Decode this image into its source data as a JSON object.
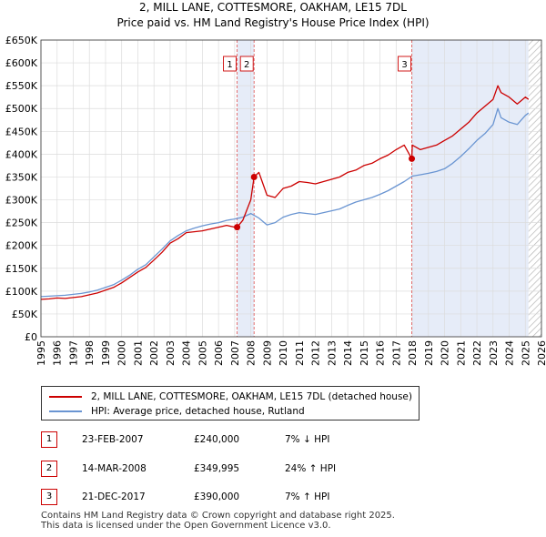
{
  "chart_data": {
    "type": "line",
    "title": "2, MILL LANE, COTTESMORE, OAKHAM, LE15 7DL",
    "subtitle": "Price paid vs. HM Land Registry's House Price Index (HPI)",
    "x_ticks": [
      "1995",
      "1996",
      "1997",
      "1998",
      "1999",
      "2000",
      "2001",
      "2002",
      "2003",
      "2004",
      "2005",
      "2006",
      "2007",
      "2008",
      "2009",
      "2010",
      "2011",
      "2012",
      "2013",
      "2014",
      "2015",
      "2016",
      "2017",
      "2018",
      "2019",
      "2020",
      "2021",
      "2022",
      "2023",
      "2024",
      "2025",
      "2026"
    ],
    "y_ticks": [
      "£0",
      "£50K",
      "£100K",
      "£150K",
      "£200K",
      "£250K",
      "£300K",
      "£350K",
      "£400K",
      "£450K",
      "£500K",
      "£550K",
      "£600K",
      "£650K"
    ],
    "xlim": [
      1995,
      2026
    ],
    "ylim": [
      0,
      650000
    ],
    "grid": true,
    "series": [
      {
        "name": "2, MILL LANE, COTTESMORE, OAKHAM, LE15 7DL (detached house)",
        "color": "#cc0000",
        "x": [
          1995.0,
          1995.5,
          1996.0,
          1996.5,
          1997.0,
          1997.5,
          1998.0,
          1998.5,
          1999.0,
          1999.5,
          2000.0,
          2000.5,
          2001.0,
          2001.5,
          2002.0,
          2002.5,
          2003.0,
          2003.5,
          2004.0,
          2004.5,
          2005.0,
          2005.5,
          2006.0,
          2006.5,
          2007.0,
          2007.15,
          2007.5,
          2008.0,
          2008.2,
          2008.5,
          2009.0,
          2009.5,
          2010.0,
          2010.5,
          2011.0,
          2011.5,
          2012.0,
          2012.5,
          2013.0,
          2013.5,
          2014.0,
          2014.5,
          2015.0,
          2015.5,
          2016.0,
          2016.5,
          2017.0,
          2017.5,
          2017.97,
          2018.0,
          2018.5,
          2019.0,
          2019.5,
          2020.0,
          2020.5,
          2021.0,
          2021.5,
          2022.0,
          2022.5,
          2023.0,
          2023.3,
          2023.5,
          2024.0,
          2024.5,
          2025.0,
          2025.2
        ],
        "values": [
          82000,
          83000,
          85000,
          84000,
          86000,
          88000,
          92000,
          96000,
          102000,
          108000,
          118000,
          130000,
          142000,
          152000,
          168000,
          185000,
          205000,
          215000,
          228000,
          230000,
          232000,
          236000,
          240000,
          244000,
          240000,
          240000,
          255000,
          300000,
          349995,
          360000,
          310000,
          305000,
          325000,
          330000,
          340000,
          338000,
          335000,
          340000,
          345000,
          350000,
          360000,
          365000,
          375000,
          380000,
          390000,
          398000,
          410000,
          420000,
          390000,
          420000,
          410000,
          415000,
          420000,
          430000,
          440000,
          455000,
          470000,
          490000,
          505000,
          520000,
          550000,
          535000,
          525000,
          510000,
          525000,
          520000
        ]
      },
      {
        "name": "HPI: Average price, detached house, Rutland",
        "color": "#6a95d2",
        "x": [
          1995.0,
          1995.5,
          1996.0,
          1996.5,
          1997.0,
          1997.5,
          1998.0,
          1998.5,
          1999.0,
          1999.5,
          2000.0,
          2000.5,
          2001.0,
          2001.5,
          2002.0,
          2002.5,
          2003.0,
          2003.5,
          2004.0,
          2004.5,
          2005.0,
          2005.5,
          2006.0,
          2006.5,
          2007.0,
          2007.5,
          2008.0,
          2008.5,
          2009.0,
          2009.5,
          2010.0,
          2010.5,
          2011.0,
          2011.5,
          2012.0,
          2012.5,
          2013.0,
          2013.5,
          2014.0,
          2014.5,
          2015.0,
          2015.5,
          2016.0,
          2016.5,
          2017.0,
          2017.5,
          2018.0,
          2018.5,
          2019.0,
          2019.5,
          2020.0,
          2020.5,
          2021.0,
          2021.5,
          2022.0,
          2022.5,
          2023.0,
          2023.3,
          2023.5,
          2024.0,
          2024.5,
          2025.0,
          2025.2
        ],
        "values": [
          88000,
          89000,
          90000,
          91000,
          93000,
          95000,
          98000,
          102000,
          108000,
          114000,
          124000,
          135000,
          148000,
          158000,
          175000,
          192000,
          210000,
          222000,
          232000,
          238000,
          243000,
          247000,
          250000,
          255000,
          258000,
          262000,
          270000,
          260000,
          245000,
          250000,
          262000,
          268000,
          272000,
          270000,
          268000,
          272000,
          276000,
          280000,
          288000,
          295000,
          300000,
          305000,
          312000,
          320000,
          330000,
          340000,
          352000,
          355000,
          358000,
          362000,
          368000,
          380000,
          395000,
          412000,
          430000,
          445000,
          465000,
          500000,
          480000,
          470000,
          465000,
          485000,
          490000
        ]
      }
    ],
    "transactions": [
      {
        "label": "1",
        "x": 2007.15,
        "value": 240000
      },
      {
        "label": "2",
        "x": 2008.2,
        "value": 349995
      },
      {
        "label": "3",
        "x": 2017.97,
        "value": 390000
      }
    ],
    "shaded_regions": [
      [
        2007.15,
        2008.2
      ],
      [
        2017.97,
        2025.2
      ]
    ],
    "hatched_from": 2025.2
  },
  "legend": {
    "property": "2, MILL LANE, COTTESMORE, OAKHAM, LE15 7DL (detached house)",
    "hpi": "HPI: Average price, detached house, Rutland",
    "property_color": "#cc0000",
    "hpi_color": "#6a95d2"
  },
  "transactions_table": [
    {
      "num": "1",
      "date": "23-FEB-2007",
      "price": "£240,000",
      "hpi": "7% ↓ HPI"
    },
    {
      "num": "2",
      "date": "14-MAR-2008",
      "price": "£349,995",
      "hpi": "24% ↑ HPI"
    },
    {
      "num": "3",
      "date": "21-DEC-2017",
      "price": "£390,000",
      "hpi": "7% ↑ HPI"
    }
  ],
  "footer": {
    "line1": "Contains HM Land Registry data © Crown copyright and database right 2025.",
    "line2": "This data is licensed under the Open Government Licence v3.0."
  }
}
